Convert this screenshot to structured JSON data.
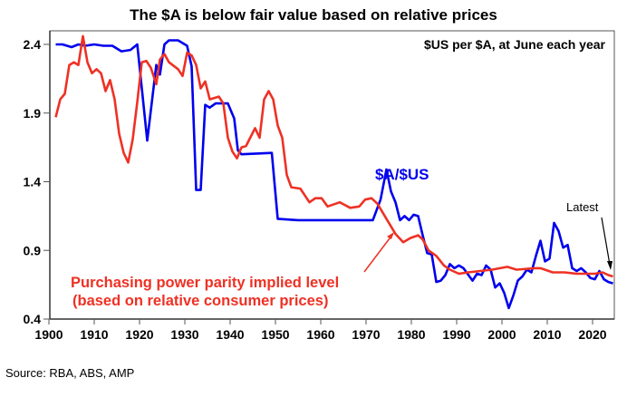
{
  "chart_data": {
    "type": "line",
    "title": "The $A is below fair value based on relative prices",
    "subtitle": "$US per $A, at June each year",
    "source": "Source: RBA, ABS, AMP",
    "xlim": [
      1900,
      2025
    ],
    "ylim": [
      0.4,
      2.4
    ],
    "xticks": [
      1900,
      1910,
      1920,
      1930,
      1940,
      1950,
      1960,
      1970,
      1980,
      1990,
      2000,
      2010,
      2020
    ],
    "yticks": [
      0.4,
      0.9,
      1.4,
      1.9,
      2.4
    ],
    "ytick_labels": [
      "0.4",
      "0.9",
      "1.4",
      "1.9",
      "2.4"
    ],
    "grid": false,
    "annotations": {
      "aud_label": "$A/$US",
      "ppp_label_line1": "Purchasing power parity implied level",
      "ppp_label_line2": "(based on relative consumer prices)",
      "latest": "Latest"
    },
    "series": [
      {
        "name": "$A/$US",
        "color": "#0000ee",
        "x": [
          1901.5,
          1903,
          1905,
          1906.5,
          1908,
          1910,
          1912,
          1914,
          1916,
          1918,
          1919.5,
          1921.7,
          1923.7,
          1924.5,
          1925.5,
          1926.5,
          1928.5,
          1930.5,
          1931.5,
          1932.5,
          1933.5,
          1934.5,
          1935.5,
          1936.8,
          1939.5,
          1940.9,
          1941.7,
          1942.5,
          1949.2,
          1950.5,
          1955,
          1960,
          1965,
          1971.5,
          1973.2,
          1974.5,
          1975.5,
          1976.5,
          1977.5,
          1978.5,
          1979.5,
          1980.5,
          1981.5,
          1982.5,
          1983.5,
          1984.5,
          1985.5,
          1986.5,
          1987.5,
          1988.5,
          1989.5,
          1990.5,
          1991.5,
          1993.5,
          1994.5,
          1995.5,
          1996.5,
          1997.5,
          1998.5,
          1999.5,
          2000.5,
          2001.5,
          2002.5,
          2003.5,
          2004.5,
          2005.5,
          2006.5,
          2007.5,
          2008.5,
          2009.5,
          2010.5,
          2011.5,
          2012.5,
          2013.5,
          2014.5,
          2015.5,
          2016.5,
          2017.5,
          2018.5,
          2019.5,
          2020.5,
          2021.5,
          2022.5,
          2023.5,
          2024.5
        ],
        "values": [
          2.4,
          2.4,
          2.38,
          2.4,
          2.39,
          2.4,
          2.39,
          2.39,
          2.35,
          2.36,
          2.4,
          1.7,
          2.25,
          2.18,
          2.4,
          2.43,
          2.43,
          2.39,
          2.24,
          1.34,
          1.34,
          1.96,
          1.94,
          1.97,
          1.97,
          1.86,
          1.63,
          1.6,
          1.61,
          1.13,
          1.12,
          1.12,
          1.12,
          1.12,
          1.27,
          1.49,
          1.33,
          1.25,
          1.12,
          1.15,
          1.12,
          1.16,
          1.15,
          1.01,
          0.88,
          0.87,
          0.67,
          0.68,
          0.72,
          0.8,
          0.77,
          0.79,
          0.77,
          0.68,
          0.73,
          0.72,
          0.79,
          0.76,
          0.63,
          0.66,
          0.59,
          0.48,
          0.57,
          0.68,
          0.71,
          0.76,
          0.74,
          0.86,
          0.97,
          0.82,
          0.84,
          1.1,
          1.04,
          0.92,
          0.94,
          0.77,
          0.75,
          0.77,
          0.74,
          0.7,
          0.69,
          0.75,
          0.69,
          0.67,
          0.66
        ]
      },
      {
        "name": "Purchasing power parity implied level",
        "color": "#ee3124",
        "x": [
          1901.5,
          1902.5,
          1903.5,
          1904.5,
          1905.5,
          1906.5,
          1907.5,
          1908.5,
          1909.5,
          1910.5,
          1911.5,
          1912.5,
          1913.5,
          1914.5,
          1915.5,
          1916.5,
          1917.5,
          1918.5,
          1919.5,
          1920.5,
          1921.5,
          1922.5,
          1923.7,
          1924.5,
          1925.5,
          1926.5,
          1928.5,
          1929.5,
          1930.5,
          1931.5,
          1932.5,
          1933.5,
          1934.5,
          1935.5,
          1937.5,
          1938.5,
          1939.5,
          1940.5,
          1941.5,
          1942.5,
          1943.5,
          1945.5,
          1946.5,
          1947.5,
          1948.5,
          1949.5,
          1950.5,
          1951.5,
          1952.5,
          1953.5,
          1955.5,
          1957.5,
          1958.8,
          1960.2,
          1961.5,
          1964.2,
          1966.5,
          1968.5,
          1969.8,
          1971.2,
          1972.5,
          1974.5,
          1976.5,
          1978.2,
          1979.8,
          1981.5,
          1982.5,
          1983.8,
          1985.5,
          1987.2,
          1988.5,
          1990.5,
          1992.5,
          1995.2,
          1997.8,
          2001.2,
          2003.2,
          2007.2,
          2008.5,
          2011.2,
          2013.8,
          2016.5,
          2020.5,
          2022.2,
          2023.5,
          2024.5
        ],
        "values": [
          1.87,
          2.0,
          2.04,
          2.25,
          2.27,
          2.25,
          2.46,
          2.27,
          2.19,
          2.22,
          2.19,
          2.06,
          2.14,
          2.0,
          1.75,
          1.61,
          1.54,
          1.71,
          1.98,
          2.27,
          2.28,
          2.23,
          2.11,
          2.29,
          2.33,
          2.27,
          2.22,
          2.17,
          2.34,
          2.32,
          2.25,
          2.08,
          2.13,
          2.0,
          2.02,
          1.97,
          1.72,
          1.62,
          1.57,
          1.65,
          1.66,
          1.79,
          1.72,
          2.0,
          2.06,
          2.0,
          1.81,
          1.72,
          1.45,
          1.36,
          1.35,
          1.25,
          1.28,
          1.28,
          1.22,
          1.25,
          1.21,
          1.22,
          1.27,
          1.28,
          1.24,
          1.13,
          1.02,
          0.96,
          0.99,
          1.01,
          0.98,
          0.9,
          0.86,
          0.79,
          0.76,
          0.73,
          0.74,
          0.75,
          0.76,
          0.78,
          0.76,
          0.77,
          0.77,
          0.74,
          0.74,
          0.73,
          0.73,
          0.74,
          0.72,
          0.71
        ]
      }
    ]
  }
}
